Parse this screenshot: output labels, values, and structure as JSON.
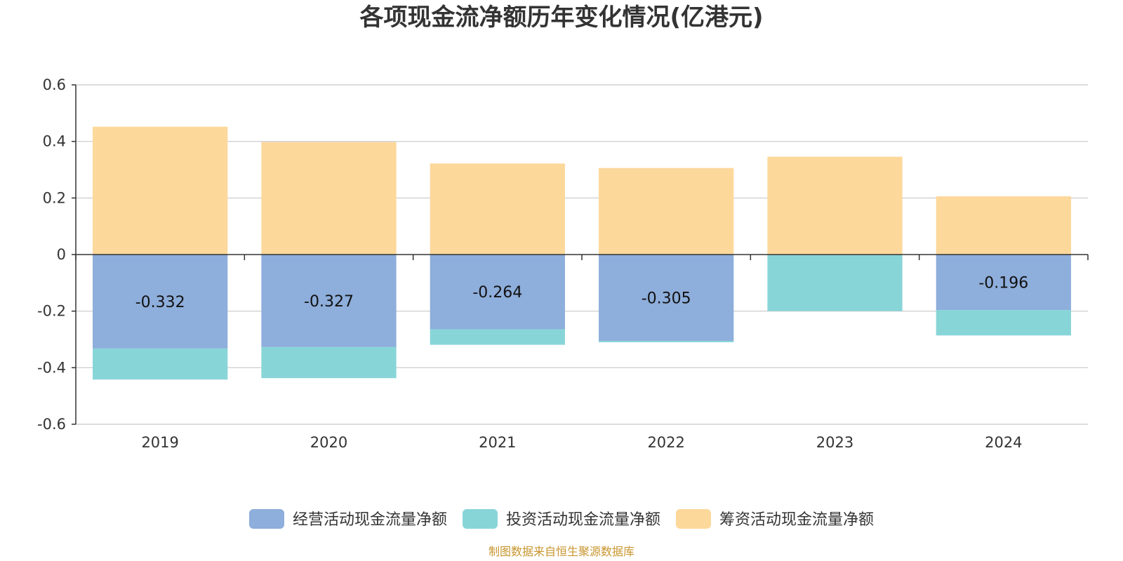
{
  "colors": {
    "operating": "#8eaedb",
    "investing": "#88d5d8",
    "financing": "#fdd89b",
    "grid": "#c8c8c8",
    "axis": "#333333",
    "title": "#333333",
    "source": "#c8952e"
  },
  "chart_data": {
    "type": "bar",
    "stacked": true,
    "title": "各项现金流净额历年变化情况(亿港元)",
    "categories": [
      "2019",
      "2020",
      "2021",
      "2022",
      "2023",
      "2024"
    ],
    "ylim": [
      -0.6,
      0.6
    ],
    "yticks": [
      "0.6",
      "0.4",
      "0.2",
      "0",
      "-0.2",
      "-0.4",
      "-0.6"
    ],
    "grid": true,
    "legend_position": "bottom",
    "series": [
      {
        "name": "经营活动现金流量净额",
        "color_key": "operating",
        "values": [
          -0.332,
          -0.327,
          -0.264,
          -0.305,
          0.0,
          -0.196
        ],
        "labels": [
          "-0.332",
          "-0.327",
          "-0.264",
          "-0.305",
          "",
          "-0.196"
        ]
      },
      {
        "name": "投资活动现金流量净额",
        "color_key": "investing",
        "values": [
          -0.11,
          -0.11,
          -0.055,
          -0.005,
          -0.2,
          -0.09
        ]
      },
      {
        "name": "筹资活动现金流量净额",
        "color_key": "financing",
        "values": [
          0.452,
          0.398,
          0.322,
          0.306,
          0.346,
          0.206
        ]
      }
    ],
    "source": "制图数据来自恒生聚源数据库"
  }
}
